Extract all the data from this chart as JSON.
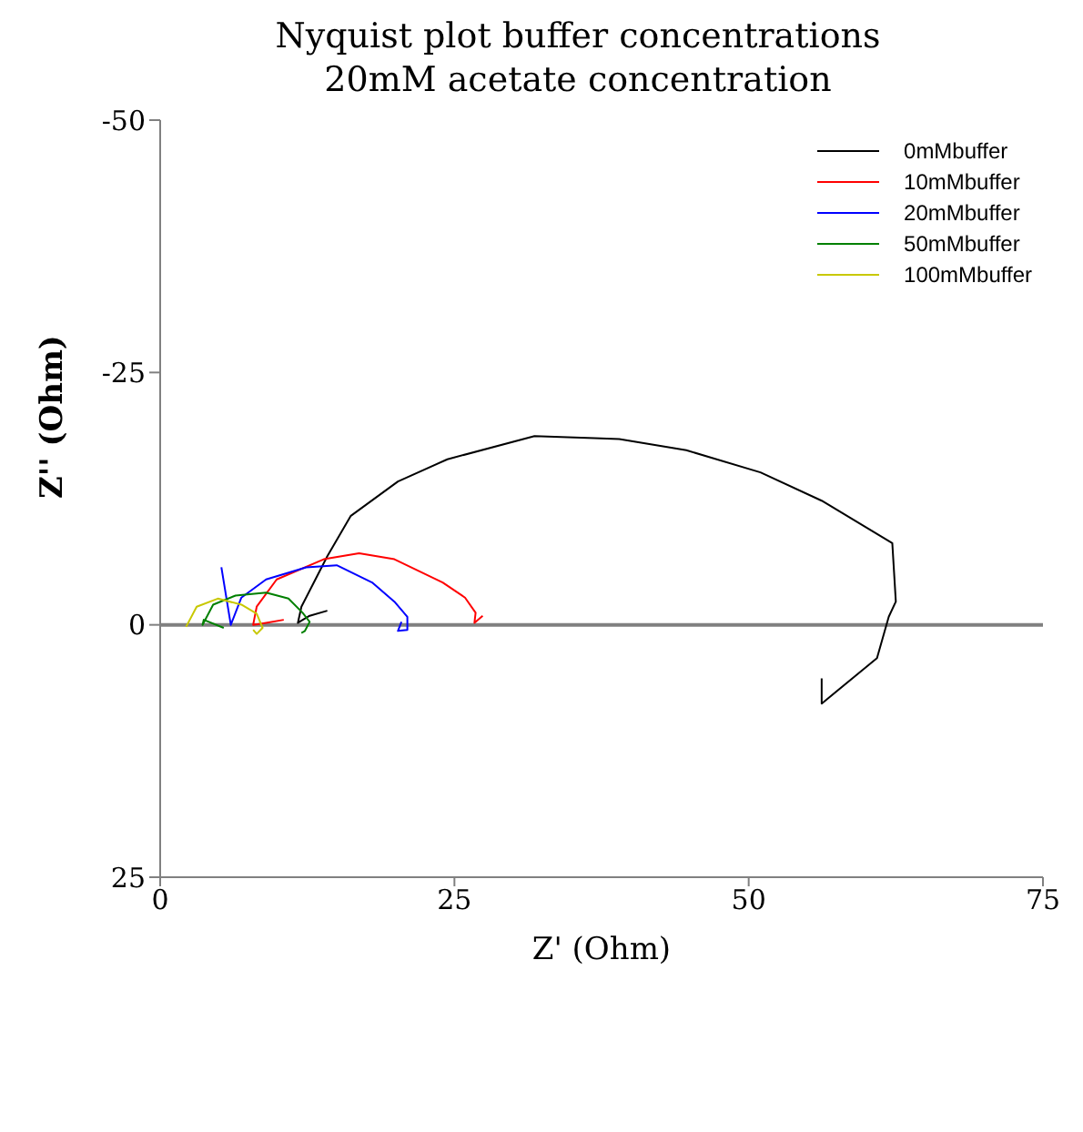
{
  "chart_data": {
    "type": "line",
    "title": "Nyquist plot buffer concentrations",
    "subtitle": "20mM acetate concentration",
    "xlabel": "Z' (Ohm)",
    "ylabel": "Z'' (Ohm)",
    "xlim": [
      0,
      75
    ],
    "xticks": [
      0,
      25,
      50,
      75
    ],
    "ylim": [
      25,
      -50
    ],
    "yticks": [
      -50,
      -25,
      0,
      25
    ],
    "legend": "top right",
    "grid": false,
    "marker": "none",
    "line_style": "solid",
    "ref_lines": [
      {
        "axis": "y",
        "value": 0,
        "color": "#808080"
      }
    ],
    "series": [
      {
        "name": "0mMbuffer",
        "color": "#000000",
        "x": [
          14.2,
          12.7,
          11.7,
          12.0,
          14.2,
          16.2,
          20.2,
          24.4,
          31.8,
          36.9,
          39.0,
          44.7,
          51.0,
          56.2,
          62.2,
          62.5,
          61.9,
          60.9,
          56.2,
          56.2
        ],
        "values": [
          -1.4,
          -0.9,
          -0.2,
          -1.8,
          -6.8,
          -10.8,
          -14.2,
          -16.4,
          -18.7,
          -18.5,
          -18.4,
          -17.3,
          -15.1,
          -12.3,
          -8.1,
          -2.3,
          -0.8,
          3.3,
          7.8,
          5.3
        ]
      },
      {
        "name": "10mMbuffer",
        "color": "#ff0000",
        "x": [
          10.5,
          9.0,
          7.9,
          8.2,
          9.9,
          13.9,
          16.9,
          19.9,
          24.0,
          25.9,
          26.8,
          26.7,
          27.4
        ],
        "values": [
          -0.5,
          -0.2,
          0,
          -1.8,
          -4.5,
          -6.5,
          -7.1,
          -6.5,
          -4.2,
          -2.7,
          -1.2,
          -0.2,
          -0.9
        ]
      },
      {
        "name": "20mMbuffer",
        "color": "#0000ff",
        "x": [
          5.2,
          6.0,
          6.9,
          9.0,
          12.4,
          15.0,
          18.0,
          19.9,
          21.0,
          21.0,
          20.2,
          20.5
        ],
        "values": [
          -5.7,
          0,
          -2.7,
          -4.5,
          -5.7,
          -5.9,
          -4.2,
          -2.3,
          -0.8,
          0.5,
          0.6,
          -0.3
        ]
      },
      {
        "name": "50mMbuffer",
        "color": "#008000",
        "x": [
          5.4,
          3.7,
          3.6,
          4.5,
          6.4,
          9.0,
          10.9,
          12.1,
          12.7,
          12.3,
          12.0
        ],
        "values": [
          0.3,
          -0.5,
          0,
          -2.0,
          -2.9,
          -3.2,
          -2.6,
          -1.2,
          -0.3,
          0.6,
          0.8
        ]
      },
      {
        "name": "100mMbuffer",
        "color": "#c8c800",
        "x": [
          2.2,
          3.1,
          4.9,
          6.9,
          8.2,
          8.7,
          8.2,
          7.9
        ],
        "values": [
          0.2,
          -1.8,
          -2.6,
          -2.0,
          -1.1,
          0.3,
          0.9,
          0.5
        ]
      }
    ]
  }
}
